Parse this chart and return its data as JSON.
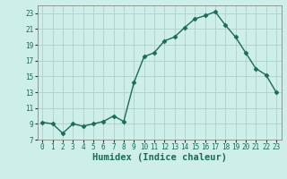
{
  "x": [
    0,
    1,
    2,
    3,
    4,
    5,
    6,
    7,
    8,
    9,
    10,
    11,
    12,
    13,
    14,
    15,
    16,
    17,
    18,
    19,
    20,
    21,
    22,
    23
  ],
  "y": [
    9.2,
    9.0,
    7.8,
    9.0,
    8.7,
    9.0,
    9.3,
    10.0,
    9.3,
    14.2,
    17.5,
    18.0,
    19.5,
    20.0,
    21.2,
    22.3,
    22.7,
    23.2,
    21.5,
    20.0,
    18.0,
    16.0,
    15.2,
    13.0
  ],
  "line_color": "#1a6b5a",
  "marker": "D",
  "marker_size": 2.5,
  "bg_color": "#ceeee9",
  "grid_color": "#b0cece",
  "xlabel": "Humidex (Indice chaleur)",
  "xlim": [
    -0.5,
    23.5
  ],
  "ylim": [
    7,
    24
  ],
  "yticks": [
    7,
    9,
    11,
    13,
    15,
    17,
    19,
    21,
    23
  ],
  "xticks": [
    0,
    1,
    2,
    3,
    4,
    5,
    6,
    7,
    8,
    9,
    10,
    11,
    12,
    13,
    14,
    15,
    16,
    17,
    18,
    19,
    20,
    21,
    22,
    23
  ],
  "tick_label_fontsize": 5.5,
  "xlabel_fontsize": 7.5,
  "line_width": 1.0
}
